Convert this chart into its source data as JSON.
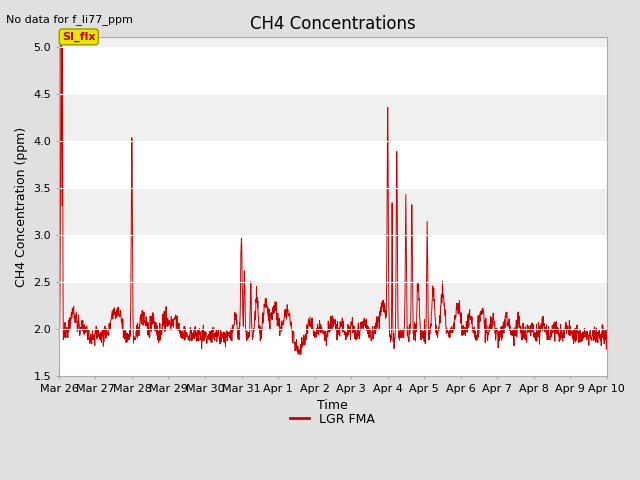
{
  "title": "CH4 Concentrations",
  "xlabel": "Time",
  "ylabel": "CH4 Concentration (ppm)",
  "top_left_text": "No data for f_li77_ppm",
  "annotation_text": "SI_flx",
  "ylim": [
    1.5,
    5.1
  ],
  "yticks": [
    1.5,
    2.0,
    2.5,
    3.0,
    3.5,
    4.0,
    4.5,
    5.0
  ],
  "xtick_labels": [
    "Mar 26",
    "Mar 27",
    "Mar 28",
    "Mar 29",
    "Mar 30",
    "Mar 31",
    "Apr 1",
    "Apr 2",
    "Apr 3",
    "Apr 4",
    "Apr 5",
    "Apr 6",
    "Apr 7",
    "Apr 8",
    "Apr 9",
    "Apr 10"
  ],
  "line_color": "#cc0000",
  "line_width": 0.7,
  "legend_label": "LGR FMA",
  "background_color": "#e0e0e0",
  "plot_bg_color": "#f0f0f0",
  "annotation_bg": "#e8e800",
  "annotation_text_color": "#cc0000",
  "title_fontsize": 12,
  "axis_label_fontsize": 9,
  "tick_fontsize": 8,
  "grid_color": "#ffffff",
  "grid_band_color": "#e0e0e0"
}
